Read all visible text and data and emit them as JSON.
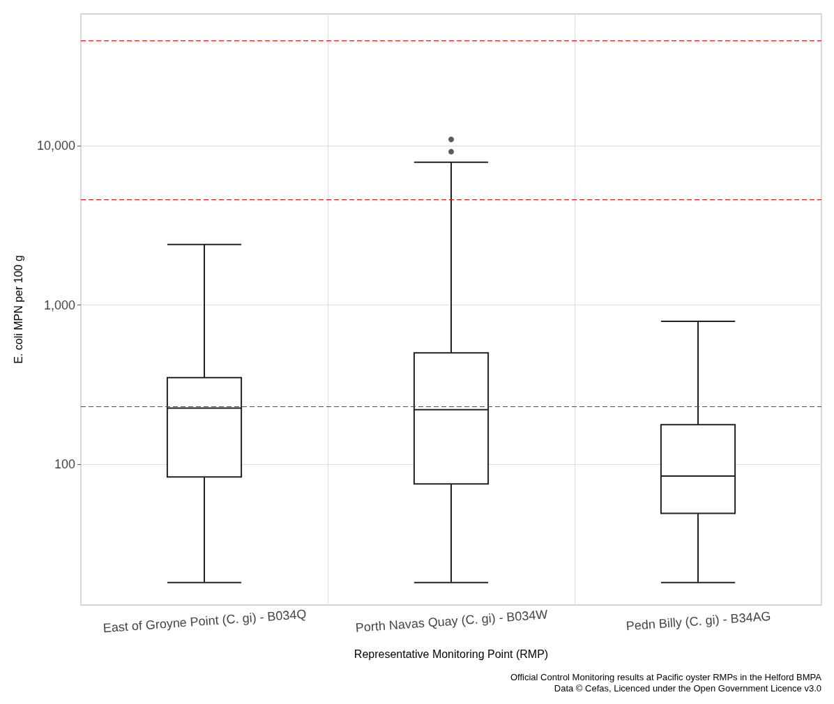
{
  "chart_data": {
    "type": "box",
    "xlabel": "Representative Monitoring Point (RMP)",
    "ylabel": "E. coli MPN per 100 g",
    "categories": [
      "East of Groyne Point (C. gi) - B034Q",
      "Porth Navas Quay (C. gi) - B034W",
      "Pedn Billy (C. gi) - B34AG"
    ],
    "boxes": [
      {
        "low": 18,
        "q1": 83,
        "median": 225,
        "q3": 350,
        "high": 2400
      },
      {
        "low": 18,
        "q1": 75,
        "median": 220,
        "q3": 500,
        "high": 7900,
        "outliers": [
          9200,
          11000
        ]
      },
      {
        "low": 18,
        "q1": 49,
        "median": 84,
        "q3": 177,
        "high": 790
      }
    ],
    "color": "#ffffff",
    "log": "y",
    "ylim": [
      13,
      67600
    ],
    "yticks": [
      {
        "value": 100,
        "label": "100"
      },
      {
        "value": 1000,
        "label": "1,000"
      },
      {
        "value": 10000,
        "label": "10,000"
      }
    ],
    "grid": true,
    "ref_lines": [
      {
        "axis": "y",
        "value": 46000,
        "color": "#ff0000",
        "line_style": "dashed"
      },
      {
        "axis": "y",
        "value": 4600,
        "color": "#ff0000",
        "line_style": "dashed"
      },
      {
        "axis": "y",
        "value": 230,
        "color": "#ff0000",
        "line_style": "dashed"
      }
    ],
    "annotations": [
      "Official Control Monitoring results at Pacific oyster RMPs in the Helford BMPA",
      "Data © Cefas, Licenced under the Open Government Licence v3.0"
    ]
  }
}
